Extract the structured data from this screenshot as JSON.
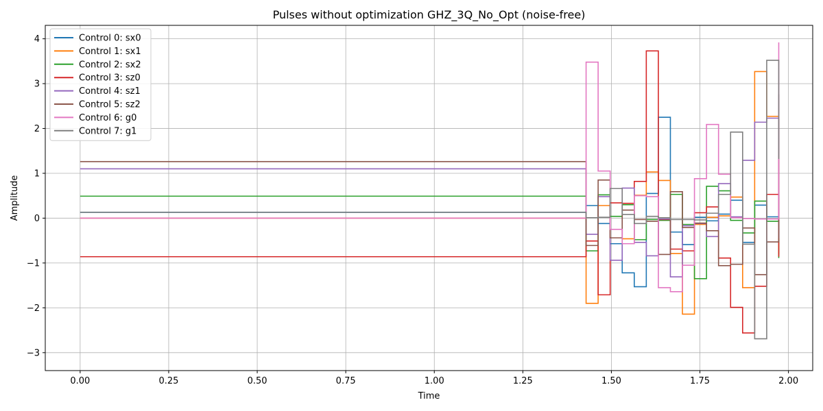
{
  "chart_data": {
    "type": "line",
    "step": "post",
    "title": "Pulses without optimization GHZ_3Q_No_Opt (noise-free)",
    "xlabel": "Time",
    "ylabel": "Amplitude",
    "xlim": [
      -0.0985,
      2.0685
    ],
    "ylim": [
      -3.4,
      4.3
    ],
    "xticks": [
      0.0,
      0.25,
      0.5,
      0.75,
      1.0,
      1.25,
      1.5,
      1.75,
      2.0
    ],
    "xtick_labels": [
      "0.00",
      "0.25",
      "0.50",
      "0.75",
      "1.00",
      "1.25",
      "1.50",
      "1.75",
      "2.00"
    ],
    "yticks": [
      -3,
      -2,
      -1,
      0,
      1,
      2,
      3,
      4
    ],
    "ytick_labels": [
      "−3",
      "−2",
      "−1",
      "0",
      "1",
      "2",
      "3",
      "4"
    ],
    "grid": true,
    "legend_position": "upper-left",
    "x_breaks": [
      0.0,
      1.4286,
      1.4626,
      1.4966,
      1.5306,
      1.5646,
      1.5986,
      1.6326,
      1.6666,
      1.7006,
      1.7346,
      1.7686,
      1.8026,
      1.8366,
      1.8706,
      1.9046,
      1.9386,
      1.9726
    ],
    "series": [
      {
        "name": "Control 0: sx0",
        "color": "#1f77b4",
        "values": [
          0.13,
          0.28,
          -0.12,
          -0.57,
          -1.22,
          -1.53,
          0.55,
          2.25,
          -0.31,
          -0.59,
          0.02,
          -0.06,
          0.09,
          0.4,
          -0.54,
          0.29,
          0.03,
          0.2
        ]
      },
      {
        "name": "Control 1: sx1",
        "color": "#ff7f0e",
        "values": [
          0.0,
          -1.9,
          0.28,
          -0.44,
          -0.46,
          0.51,
          1.03,
          0.84,
          -0.79,
          -2.14,
          -0.14,
          0.02,
          0.05,
          0.47,
          -1.55,
          3.27,
          2.27,
          -0.81
        ]
      },
      {
        "name": "Control 2: sx2",
        "color": "#2ca02c",
        "values": [
          0.49,
          -0.73,
          0.52,
          0.04,
          0.3,
          -0.48,
          -0.03,
          -0.05,
          0.53,
          -0.14,
          -1.35,
          0.71,
          0.61,
          -0.05,
          -0.33,
          0.38,
          -0.07,
          -0.89
        ]
      },
      {
        "name": "Control 3: sz0",
        "color": "#d62728",
        "values": [
          -0.86,
          -0.51,
          -1.71,
          0.34,
          0.33,
          0.82,
          3.73,
          -0.03,
          -0.69,
          -0.73,
          0.12,
          0.25,
          -0.89,
          -1.99,
          -2.56,
          -1.52,
          0.53,
          -0.86
        ]
      },
      {
        "name": "Control 4: sz1",
        "color": "#9467bd",
        "values": [
          1.1,
          -0.36,
          0.48,
          -0.94,
          0.67,
          -0.54,
          -0.84,
          -0.02,
          -1.31,
          -0.17,
          -0.12,
          -0.41,
          0.77,
          0.03,
          1.29,
          2.14,
          2.23,
          -0.45
        ]
      },
      {
        "name": "Control 5: sz2",
        "color": "#8c564b",
        "values": [
          1.26,
          -0.61,
          0.85,
          -0.44,
          0.18,
          -0.03,
          -0.07,
          -0.81,
          0.59,
          -0.21,
          -0.11,
          -0.28,
          -1.06,
          -1.03,
          -0.22,
          -1.26,
          -0.53,
          2.76
        ]
      },
      {
        "name": "Control 6: g0",
        "color": "#e377c2",
        "values": [
          0.0,
          3.48,
          1.05,
          -0.25,
          -0.57,
          0.5,
          0.48,
          -1.55,
          -1.64,
          -1.05,
          0.88,
          2.09,
          0.98,
          0.01,
          -0.01,
          -0.02,
          -0.02,
          3.92
        ]
      },
      {
        "name": "Control 7: g1",
        "color": "#7f7f7f",
        "values": [
          0.13,
          0.01,
          0.02,
          0.66,
          0.08,
          -0.12,
          0.04,
          0.01,
          -0.03,
          -0.03,
          -0.04,
          0.11,
          0.53,
          1.92,
          -0.58,
          -2.69,
          3.52,
          1.32
        ]
      }
    ]
  }
}
